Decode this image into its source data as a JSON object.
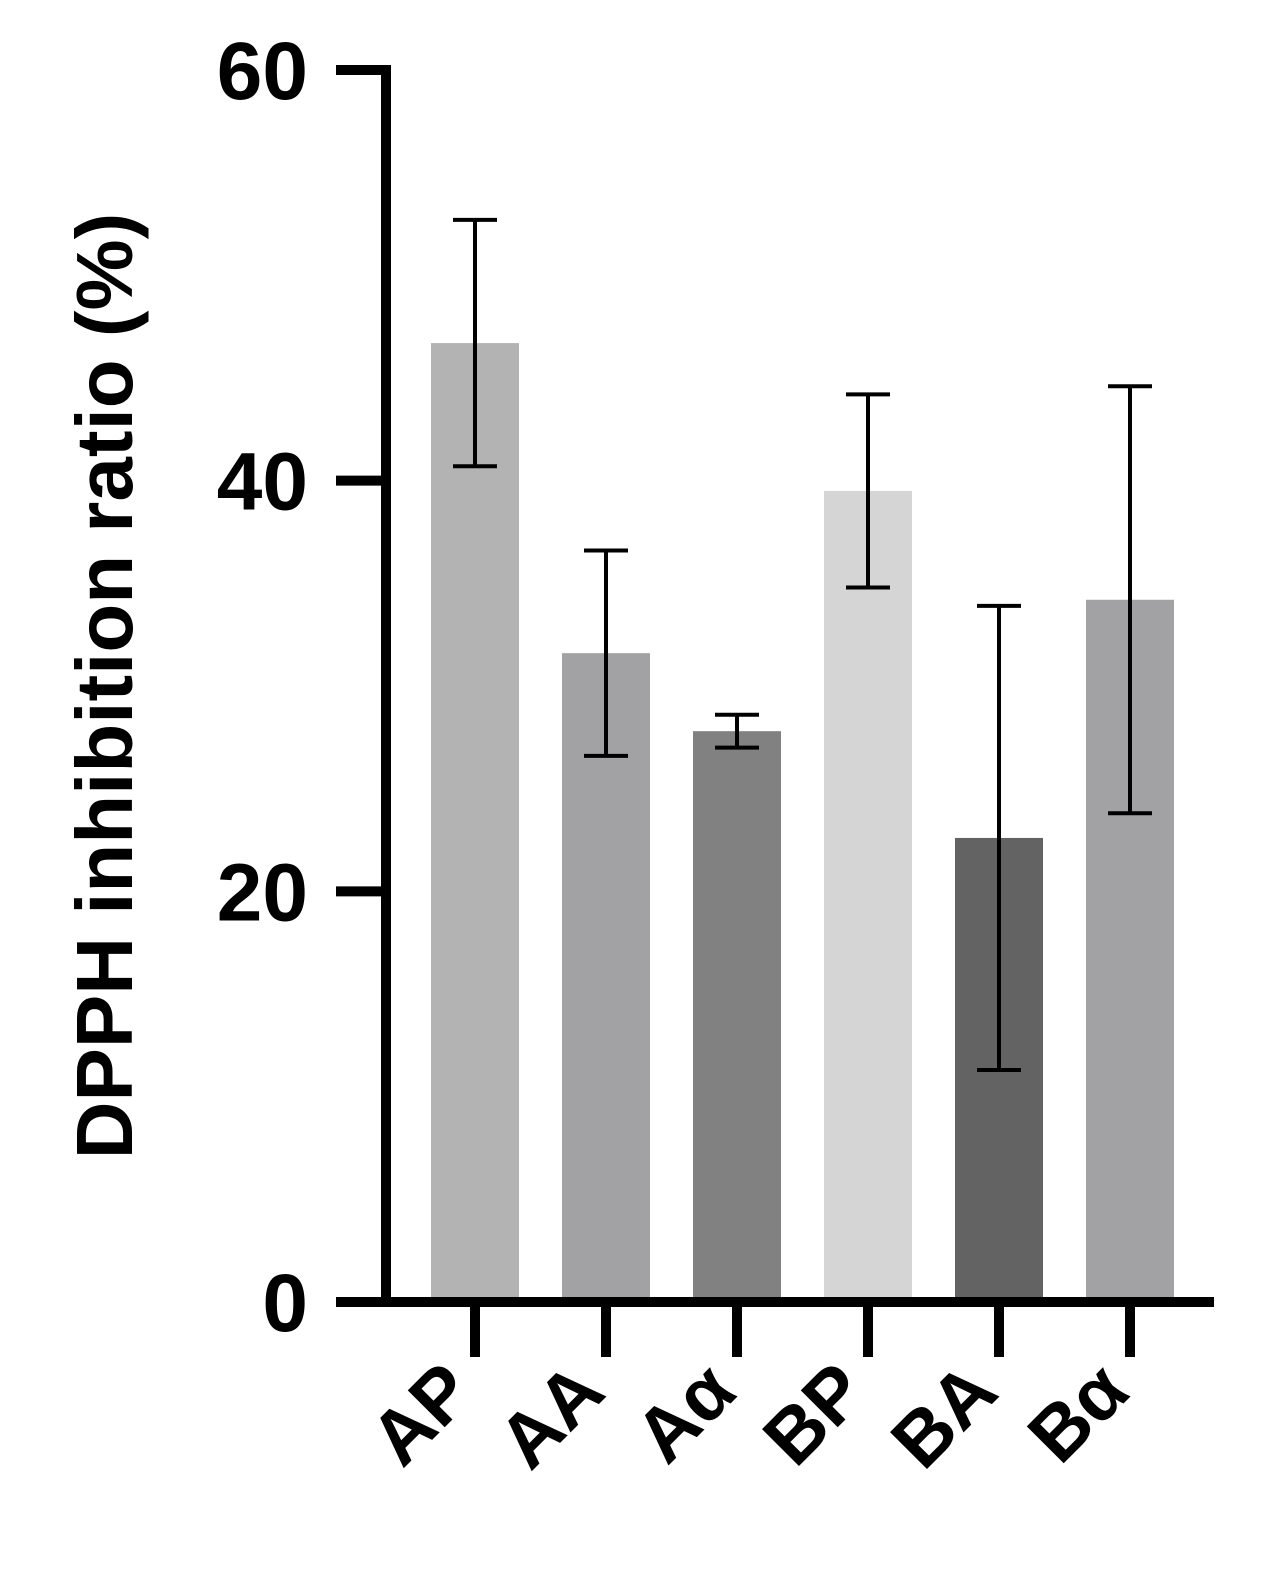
{
  "chart_data": {
    "type": "bar",
    "title": "",
    "xlabel": "",
    "ylabel": "DPPH inhibition ratio (%)",
    "categories": [
      "AP",
      "AA",
      "Aα",
      "BP",
      "BA",
      "Bα"
    ],
    "values": [
      46.7,
      31.6,
      27.8,
      39.5,
      22.6,
      34.2
    ],
    "error": [
      6.0,
      5.0,
      0.8,
      4.7,
      11.3,
      10.4
    ],
    "colors": [
      "#b3b3b3",
      "#a2a2a5",
      "#818181",
      "#d5d5d5",
      "#636363",
      "#a2a2a5"
    ],
    "ylim": [
      0,
      60
    ],
    "yticks": [
      "0",
      "20",
      "40",
      "60"
    ],
    "ytick_values": [
      0,
      20,
      40,
      60
    ],
    "grid": false,
    "legend": "none"
  }
}
